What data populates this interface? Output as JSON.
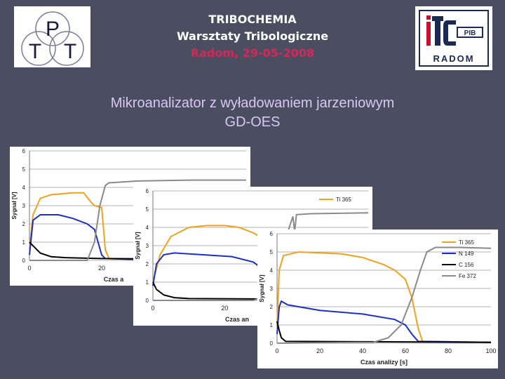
{
  "header": {
    "line1": "TRIBOCHEMIA",
    "line2": "Warsztaty Tribologiczne",
    "line3": "Radom, 29-05-2008"
  },
  "subtitle": {
    "line1": "Mikroanalizator  z wyładowaniem jarzeniowym",
    "line2": "GD-OES"
  },
  "logos": {
    "left": {
      "letters": [
        "P",
        "T",
        "T"
      ]
    },
    "right": {
      "mark": "ITE",
      "badge": "PIB",
      "city": "RADOM"
    }
  },
  "colors": {
    "background": "#4b4d61",
    "Ti": "#f0a21c",
    "N": "#1c2fc8",
    "C": "#000000",
    "Fe": "#8a8a8a",
    "title_red": "#d12a5a",
    "subtitle": "#d9c8f2"
  },
  "chart_data": [
    {
      "type": "line",
      "ylabel": "Sygnał [V]",
      "xlabel": "Czas a",
      "yticks": [
        "0",
        "1",
        "2",
        "3",
        "4",
        "5",
        "6"
      ],
      "xticks": [
        "0",
        "20",
        "40"
      ],
      "xlim": [
        0,
        60
      ],
      "ylim": [
        0,
        6
      ],
      "series": [
        {
          "key": "Ti",
          "points": [
            [
              0,
              0.6
            ],
            [
              1,
              2.5
            ],
            [
              3,
              3.4
            ],
            [
              6,
              3.6
            ],
            [
              12,
              3.7
            ],
            [
              15,
              3.7
            ],
            [
              17,
              3.2
            ],
            [
              18,
              3.0
            ],
            [
              20,
              2.9
            ],
            [
              21,
              0.6
            ],
            [
              22,
              0.1
            ],
            [
              30,
              0.05
            ],
            [
              60,
              0.05
            ]
          ]
        },
        {
          "key": "N",
          "points": [
            [
              0,
              0.3
            ],
            [
              1,
              2.2
            ],
            [
              3,
              2.5
            ],
            [
              8,
              2.5
            ],
            [
              12,
              2.3
            ],
            [
              16,
              2.0
            ],
            [
              18,
              1.7
            ],
            [
              19,
              1.0
            ],
            [
              20,
              0.3
            ],
            [
              21,
              0.1
            ],
            [
              30,
              0.05
            ],
            [
              60,
              0.05
            ]
          ]
        },
        {
          "key": "C",
          "points": [
            [
              0,
              1.0
            ],
            [
              1,
              0.8
            ],
            [
              3,
              0.4
            ],
            [
              6,
              0.2
            ],
            [
              10,
              0.15
            ],
            [
              20,
              0.1
            ],
            [
              60,
              0.05
            ]
          ]
        },
        {
          "key": "Fe",
          "points": [
            [
              0,
              0
            ],
            [
              16,
              0
            ],
            [
              18,
              1.0
            ],
            [
              19.5,
              3.0
            ],
            [
              21,
              4.1
            ],
            [
              22,
              4.25
            ],
            [
              30,
              4.35
            ],
            [
              45,
              4.4
            ],
            [
              60,
              4.4
            ]
          ]
        }
      ]
    },
    {
      "type": "line",
      "ylabel": "Sygnał [V]",
      "xlabel": "Czas an",
      "yticks": [
        "0",
        "1",
        "2",
        "3",
        "4",
        "5",
        "6"
      ],
      "xticks": [
        "0",
        "20",
        "40"
      ],
      "xlim": [
        0,
        60
      ],
      "ylim": [
        0,
        6
      ],
      "legend": [
        "Ti 365"
      ],
      "series": [
        {
          "key": "Ti",
          "points": [
            [
              0,
              1.0
            ],
            [
              2,
              2.5
            ],
            [
              5,
              3.5
            ],
            [
              10,
              4.0
            ],
            [
              15,
              4.1
            ],
            [
              20,
              4.1
            ],
            [
              24,
              4.0
            ],
            [
              28,
              3.7
            ],
            [
              32,
              3.2
            ],
            [
              36,
              2.5
            ],
            [
              38,
              1.5
            ],
            [
              40,
              0.3
            ],
            [
              42,
              0.1
            ],
            [
              60,
              0.1
            ]
          ]
        },
        {
          "key": "N",
          "points": [
            [
              0,
              0.8
            ],
            [
              1,
              2.0
            ],
            [
              3,
              2.5
            ],
            [
              6,
              2.6
            ],
            [
              14,
              2.5
            ],
            [
              22,
              2.4
            ],
            [
              28,
              2.1
            ],
            [
              32,
              1.5
            ],
            [
              35,
              1.0
            ],
            [
              38,
              0.2
            ],
            [
              40,
              0.05
            ],
            [
              60,
              0.05
            ]
          ]
        },
        {
          "key": "C",
          "points": [
            [
              0,
              1.0
            ],
            [
              1,
              0.6
            ],
            [
              3,
              0.3
            ],
            [
              6,
              0.15
            ],
            [
              10,
              0.1
            ],
            [
              60,
              0.05
            ]
          ]
        },
        {
          "key": "Fe",
          "points": [
            [
              0,
              0
            ],
            [
              28,
              0
            ],
            [
              32,
              0.3
            ],
            [
              35,
              2.0
            ],
            [
              38,
              4.0
            ],
            [
              39,
              4.6
            ],
            [
              39.5,
              3.8
            ],
            [
              40,
              4.7
            ],
            [
              44,
              4.75
            ],
            [
              60,
              4.8
            ]
          ]
        }
      ]
    },
    {
      "type": "line",
      "ylabel": "Sygnał [V]",
      "xlabel": "Czas analizy [s]",
      "yticks": [
        "0",
        "1",
        "2",
        "3",
        "4",
        "5",
        "6"
      ],
      "xticks": [
        "0",
        "20",
        "40",
        "60",
        "80",
        "100"
      ],
      "xlim": [
        0,
        100
      ],
      "ylim": [
        0,
        6
      ],
      "legend": [
        "Ti 365",
        "N 149",
        "C 156",
        "Fe 372"
      ],
      "series": [
        {
          "key": "Ti",
          "points": [
            [
              0,
              1.0
            ],
            [
              1,
              4.0
            ],
            [
              3,
              4.8
            ],
            [
              10,
              5.0
            ],
            [
              20,
              4.95
            ],
            [
              30,
              4.9
            ],
            [
              40,
              4.7
            ],
            [
              50,
              4.3
            ],
            [
              55,
              4.0
            ],
            [
              60,
              3.5
            ],
            [
              63,
              2.5
            ],
            [
              66,
              0.8
            ],
            [
              68,
              0.1
            ],
            [
              100,
              0.05
            ]
          ]
        },
        {
          "key": "N",
          "points": [
            [
              0,
              0.5
            ],
            [
              1,
              2.0
            ],
            [
              2,
              2.3
            ],
            [
              5,
              2.1
            ],
            [
              20,
              1.8
            ],
            [
              40,
              1.6
            ],
            [
              55,
              1.3
            ],
            [
              60,
              1.0
            ],
            [
              63,
              0.5
            ],
            [
              66,
              0.1
            ],
            [
              100,
              0.05
            ]
          ]
        },
        {
          "key": "C",
          "points": [
            [
              0,
              1.2
            ],
            [
              1,
              0.7
            ],
            [
              2,
              0.3
            ],
            [
              4,
              0.1
            ],
            [
              100,
              0.05
            ]
          ]
        },
        {
          "key": "Fe",
          "points": [
            [
              0,
              0
            ],
            [
              45,
              0.05
            ],
            [
              52,
              0.3
            ],
            [
              58,
              1.0
            ],
            [
              63,
              2.5
            ],
            [
              67,
              4.0
            ],
            [
              70,
              5.0
            ],
            [
              74,
              5.25
            ],
            [
              85,
              5.25
            ],
            [
              100,
              5.2
            ]
          ]
        }
      ]
    }
  ]
}
